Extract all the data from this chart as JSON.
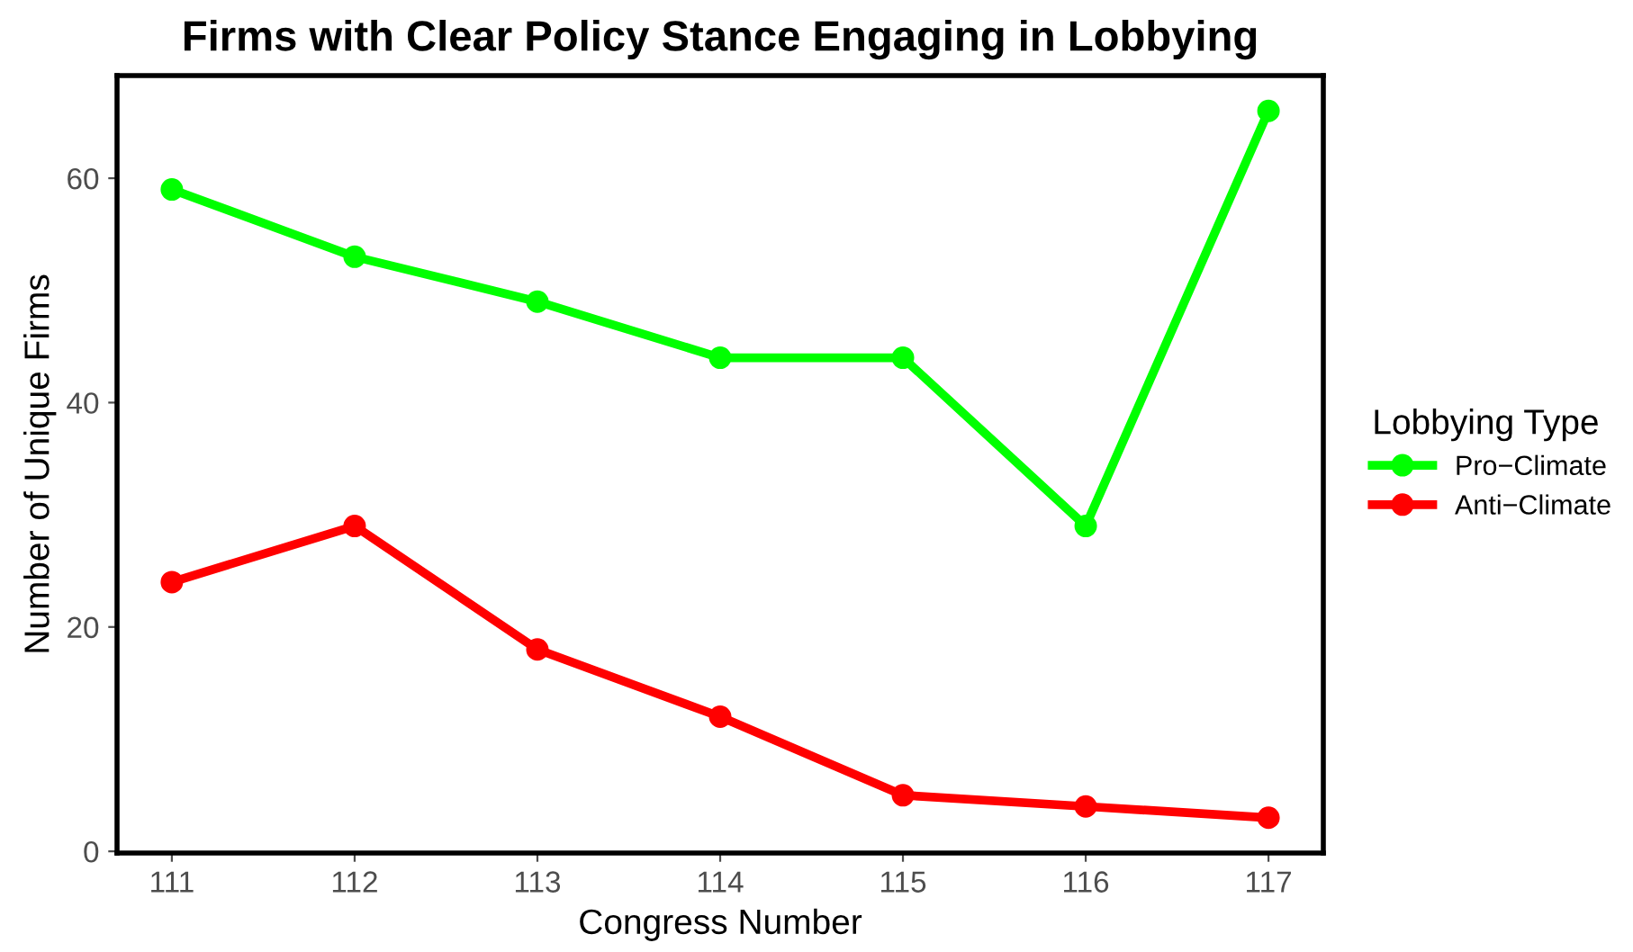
{
  "chart_data": {
    "type": "line",
    "title": "Firms with Clear Policy Stance Engaging in Lobbying",
    "xlabel": "Congress Number",
    "ylabel": "Number of Unique Firms",
    "legend_title": "Lobbying Type",
    "x": [
      111,
      112,
      113,
      114,
      115,
      116,
      117
    ],
    "series": [
      {
        "name": "Pro−Climate",
        "color": "#00ff00",
        "values": [
          59,
          53,
          49,
          44,
          44,
          29,
          66
        ]
      },
      {
        "name": "Anti−Climate",
        "color": "#ff0000",
        "values": [
          24,
          29,
          18,
          12,
          5,
          4,
          3
        ]
      }
    ],
    "xlim": [
      110.7,
      117.3
    ],
    "xticks": [
      111,
      112,
      113,
      114,
      115,
      116,
      117
    ],
    "ylim": [
      -0.15,
      69.15
    ],
    "yticks": [
      0,
      20,
      40,
      60
    ],
    "grid": false,
    "legend": "right",
    "marker": "circle",
    "line_style": "solid"
  }
}
